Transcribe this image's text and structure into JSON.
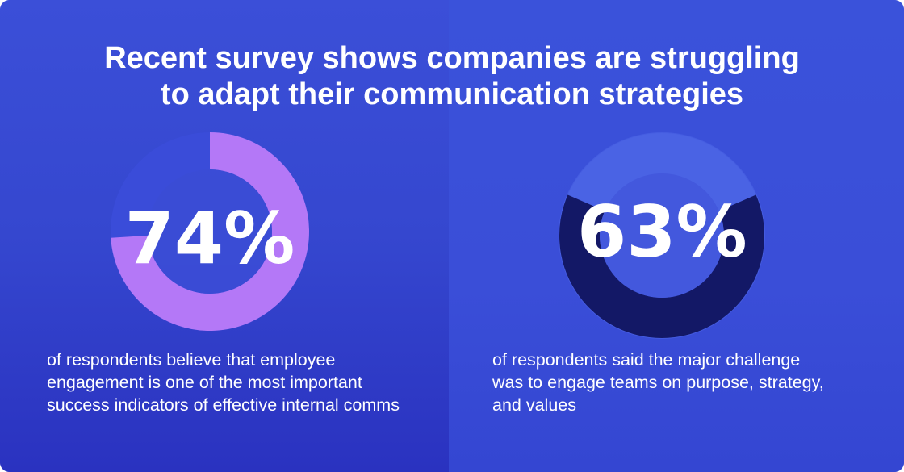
{
  "title_lines": [
    "Recent survey shows companies are struggling",
    "to adapt their communication strategies"
  ],
  "chart_data": [
    {
      "type": "pie",
      "values": [
        74,
        26
      ],
      "label": "74%",
      "description_lines": [
        "of respondents believe that employee",
        "engagement is one of the most important",
        "success indicators of effective internal comms"
      ],
      "fill_color": "#b478f7",
      "track_color": "#3a4cd9"
    },
    {
      "type": "pie",
      "values": [
        63,
        37
      ],
      "label": "63%",
      "description_lines": [
        "of respondents said the major challenge",
        "was to engage teams on purpose, strategy,",
        "and values"
      ],
      "fill_color": "#131866",
      "track_color": "#4a63e4"
    }
  ]
}
